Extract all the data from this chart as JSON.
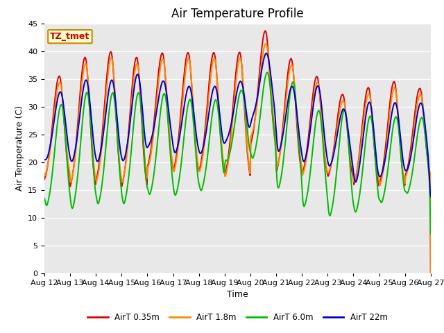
{
  "title": "Air Temperature Profile",
  "xlabel": "Time",
  "ylabel": "Air Temperature (C)",
  "ylim": [
    0,
    45
  ],
  "yticks": [
    0,
    5,
    10,
    15,
    20,
    25,
    30,
    35,
    40,
    45
  ],
  "xtick_labels": [
    "Aug 12",
    "Aug 13",
    "Aug 14",
    "Aug 15",
    "Aug 16",
    "Aug 17",
    "Aug 18",
    "Aug 19",
    "Aug 20",
    "Aug 21",
    "Aug 22",
    "Aug 23",
    "Aug 24",
    "Aug 25",
    "Aug 26",
    "Aug 27"
  ],
  "line_colors": [
    "#dd0000",
    "#ff8800",
    "#00bb00",
    "#0000cc"
  ],
  "line_labels": [
    "AirT 0.35m",
    "AirT 1.8m",
    "AirT 6.0m",
    "AirT 22m"
  ],
  "line_width": 1.4,
  "plot_bg_color": "#e8e8e8",
  "fig_bg_color": "#ffffff",
  "grid_color": "#ffffff",
  "annotation_text": "TZ_tmet",
  "annotation_bg": "#ffffcc",
  "annotation_border": "#cc8800",
  "annotation_text_color": "#cc0000",
  "title_fontsize": 12,
  "label_fontsize": 9,
  "tick_fontsize": 8
}
